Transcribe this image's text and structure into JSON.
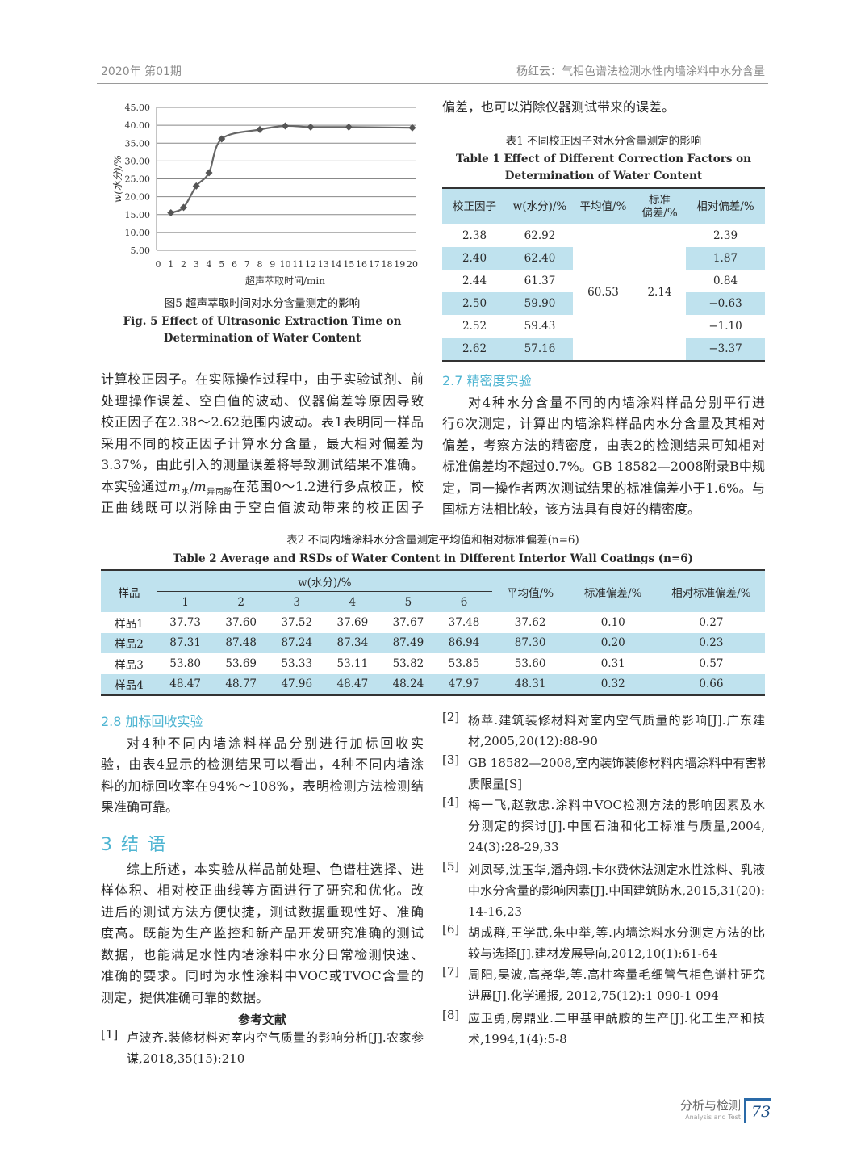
{
  "header": {
    "issue": "2020年 第01期",
    "running_title": "杨红云：气相色谱法检测水性内墙涂料中水分含量"
  },
  "chart_data": {
    "type": "line",
    "x": [
      1,
      2,
      3,
      4,
      5,
      8,
      10,
      12,
      15,
      20
    ],
    "values": [
      15.5,
      17.0,
      23.0,
      26.7,
      36.2,
      38.8,
      39.8,
      39.5,
      39.5,
      39.3
    ],
    "xlabel": "超声萃取时间/min",
    "ylabel": "w(水分)/%",
    "x_ticks": [
      "0",
      "1",
      "2",
      "3",
      "4",
      "5",
      "6",
      "7",
      "8",
      "9",
      "10",
      "11",
      "12",
      "13",
      "14",
      "15",
      "16",
      "17",
      "18",
      "19",
      "20"
    ],
    "y_ticks": [
      "5.00",
      "10.00",
      "15.00",
      "20.00",
      "25.00",
      "30.00",
      "35.00",
      "40.00",
      "45.00"
    ],
    "ylim": [
      5,
      45
    ],
    "grid": true,
    "marker": "diamond",
    "line_color": "#666666"
  },
  "fig5": {
    "cn": "图5  超声萃取时间对水分含量测定的影响",
    "en1": "Fig. 5    Effect of Ultrasonic Extraction Time on",
    "en2": "Determination of Water Content"
  },
  "right_top_line": "偏差，也可以消除仪器测试带来的误差。",
  "table1": {
    "cn": "表1   不同校正因子对水分含量测定的影响",
    "en1": "Table 1    Effect of Different Correction Factors on",
    "en2": "Determination of Water Content",
    "headers": [
      "校正因子",
      "w(水分)/%",
      "平均值/%",
      "标准\n偏差/%",
      "相对偏差/%"
    ],
    "header_std_1": "标准",
    "header_std_2": "偏差/%",
    "rows": [
      [
        "2.38",
        "62.92",
        "2.39"
      ],
      [
        "2.40",
        "62.40",
        "1.87"
      ],
      [
        "2.44",
        "61.37",
        "0.84"
      ],
      [
        "2.50",
        "59.90",
        "−0.63"
      ],
      [
        "2.52",
        "59.43",
        "−1.10"
      ],
      [
        "2.62",
        "57.16",
        "−3.37"
      ]
    ],
    "mean": "60.53",
    "std": "2.14"
  },
  "left_para1": [
    "计算校正因子。在实际操作过程中，由于实验试剂、前",
    "处理操作误差、空白值的波动、仪器偏差等原因导致",
    "校正因子在2.38～2.62范围内波动。表1表明同一样品",
    "采用不同的校正因子计算水分含量，最大相对偏差为",
    "3.37%，由此引入的测量误差将导致测试结果不准确。"
  ],
  "left_para1_m": {
    "pre": "本实验通过",
    "m1": "m",
    "s1": "水",
    "slash": "/",
    "m2": "m",
    "s2": "异丙醇",
    "post": "在范围0～1.2进行多点校正，校"
  },
  "left_para1_end": "正曲线既可以消除由于空白值波动带来的校正因子",
  "sec27": {
    "title": "2.7   精密度实验",
    "lines": [
      "对4种水分含量不同的内墙涂料样品分别平行进",
      "行6次测定，计算出内墙涂料样品内水分含量及其相对",
      "偏差，考察方法的精密度，由表2的检测结果可知相对",
      "标准偏差均不超过0.7%。GB 18582—2008附录B中规",
      "定，同一操作者两次测试结果的标准偏差小于1.6%。与",
      "国标方法相比较，该方法具有良好的精密度。"
    ]
  },
  "table2": {
    "cn": "表2   不同内墙涂料水分含量测定平均值和相对标准偏差(n=6)",
    "en": "Table 2    Average and RSDs of Water Content in Different Interior Wall Coatings (n=6)",
    "h_sample": "样品",
    "h_w": "w(水分)/%",
    "h_cols": [
      "1",
      "2",
      "3",
      "4",
      "5",
      "6"
    ],
    "h_mean": "平均值/%",
    "h_std": "标准偏差/%",
    "h_rsd": "相对标准偏差/%",
    "rows": [
      [
        "样品1",
        "37.73",
        "37.60",
        "37.52",
        "37.69",
        "37.67",
        "37.48",
        "37.62",
        "0.10",
        "0.27"
      ],
      [
        "样品2",
        "87.31",
        "87.48",
        "87.24",
        "87.34",
        "87.49",
        "86.94",
        "87.30",
        "0.20",
        "0.23"
      ],
      [
        "样品3",
        "53.80",
        "53.69",
        "53.33",
        "53.11",
        "53.82",
        "53.85",
        "53.60",
        "0.31",
        "0.57"
      ],
      [
        "样品4",
        "48.47",
        "48.77",
        "47.96",
        "48.47",
        "48.24",
        "47.97",
        "48.31",
        "0.32",
        "0.66"
      ]
    ]
  },
  "sec28": {
    "title": "2.8   加标回收实验",
    "lines": [
      "对4种不同内墙涂料样品分别进行加标回收实",
      "验，由表4显示的检测结果可以看出，4种不同内墙涂",
      "料的加标回收率在94%～108%，表明检测方法检测结",
      "果准确可靠。"
    ]
  },
  "sec3": {
    "title": "3  结   语",
    "lines": [
      "综上所述，本实验从样品前处理、色谱柱选择、进",
      "样体积、相对校正曲线等方面进行了研究和优化。改",
      "进后的测试方法方便快捷，测试数据重现性好、准确",
      "度高。既能为生产监控和新产品开发研究准确的测试",
      "数据，也能满足水性内墙涂料中水分日常检测快速、",
      "准确的要求。同时为水性涂料中VOC或TVOC含量的",
      "测定，提供准确可靠的数据。"
    ]
  },
  "refs_title": "参考文献",
  "refs": [
    {
      "num": "[1]",
      "lines": [
        "卢波齐.装修材料对室内空气质量的影响分析[J].农家参",
        "谋,2018,35(15):210"
      ]
    },
    {
      "num": "[2]",
      "lines": [
        "杨苹.建筑装修材料对室内空气质量的影响[J].广东建",
        "材,2005,20(12):88-90"
      ]
    },
    {
      "num": "[3]",
      "lines": [
        "GB 18582—2008,室内装饰装修材料内墙涂料中有害物",
        "质限量[S]"
      ]
    },
    {
      "num": "[4]",
      "lines": [
        "梅一飞,赵敦忠.涂料中VOC检测方法的影响因素及水",
        "分测定的探讨[J].中国石油和化工标准与质量,2004,",
        "24(3):28-29,33"
      ]
    },
    {
      "num": "[5]",
      "lines": [
        "刘凤琴,沈玉华,潘舟翊.卡尔费休法测定水性涂料、乳液",
        "中水分含量的影响因素[J].中国建筑防水,2015,31(20):",
        "14-16,23"
      ]
    },
    {
      "num": "[6]",
      "lines": [
        "胡成群,王学武,朱中举,等.内墙涂料水分测定方法的比",
        "较与选择[J].建材发展导向,2012,10(1):61-64"
      ]
    },
    {
      "num": "[7]",
      "lines": [
        "周阳,吴波,高尧华,等.高柱容量毛细管气相色谱柱研究",
        "进展[J].化学通报, 2012,75(12):1 090-1 094"
      ]
    },
    {
      "num": "[8]",
      "lines": [
        "应卫勇,房鼎业.二甲基甲酰胺的生产[J].化工生产和技",
        "术,1994,1(4):5-8"
      ]
    }
  ],
  "footer": {
    "journal_cn": "分析与检测",
    "journal_en": "Analysis and Test",
    "page": "73",
    "accent": "#2a6aa8"
  },
  "colors": {
    "heading": "#4fb5d2",
    "table_fill": "#bfe2ee"
  }
}
